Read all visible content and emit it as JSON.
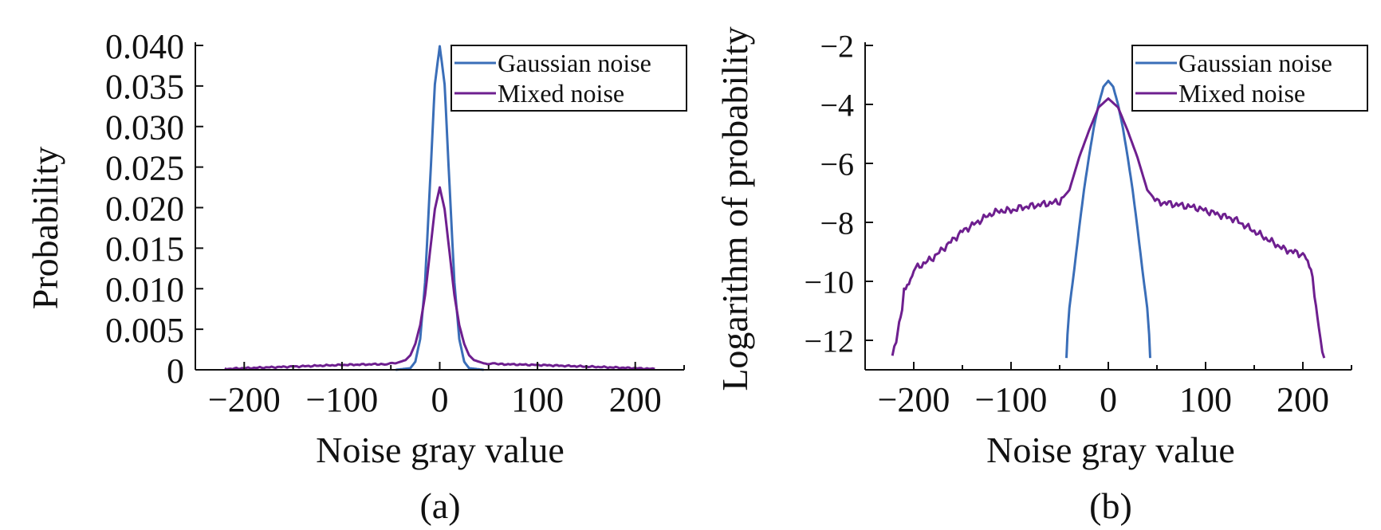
{
  "chart_data": [
    {
      "type": "line",
      "panel_label": "(a)",
      "xlabel": "Noise gray value",
      "ylabel": "Probability",
      "xlim": [
        -250,
        250
      ],
      "ylim": [
        0,
        0.04
      ],
      "xticks": [
        -200,
        -100,
        0,
        100,
        200
      ],
      "xtick_labels": [
        "−200",
        "−100",
        "0",
        "100",
        "200"
      ],
      "yticks": [
        0,
        0.005,
        0.01,
        0.015,
        0.02,
        0.025,
        0.03,
        0.035,
        0.04
      ],
      "ytick_labels": [
        "0",
        "0.005",
        "0.010",
        "0.015",
        "0.020",
        "0.025",
        "0.030",
        "0.035",
        "0.040"
      ],
      "grid": false,
      "legend_position": "top-right",
      "series": [
        {
          "name": "Gaussian noise",
          "color": "#3a6eb8",
          "x": [
            -45,
            -30,
            -25,
            -20,
            -15,
            -10,
            -5,
            0,
            5,
            10,
            15,
            20,
            25,
            30,
            45
          ],
          "y": [
            0,
            0.0002,
            0.001,
            0.0038,
            0.0108,
            0.0228,
            0.0352,
            0.0399,
            0.0352,
            0.0228,
            0.0108,
            0.0038,
            0.001,
            0.0002,
            0
          ]
        },
        {
          "name": "Mixed noise",
          "color": "#6e1f8f",
          "x": [
            -220,
            -200,
            -150,
            -100,
            -60,
            -45,
            -35,
            -30,
            -25,
            -20,
            -15,
            -10,
            -5,
            0,
            5,
            10,
            15,
            20,
            25,
            30,
            35,
            45,
            60,
            100,
            150,
            200,
            220
          ],
          "y": [
            0.0001,
            0.0002,
            0.0004,
            0.0006,
            0.0007,
            0.0008,
            0.0012,
            0.0018,
            0.0032,
            0.0055,
            0.0092,
            0.0145,
            0.0198,
            0.0225,
            0.0198,
            0.0145,
            0.0092,
            0.0055,
            0.0032,
            0.0018,
            0.0012,
            0.0008,
            0.0007,
            0.0006,
            0.0004,
            0.0002,
            0.0001
          ]
        }
      ]
    },
    {
      "type": "line",
      "panel_label": "(b)",
      "xlabel": "Noise gray value",
      "ylabel": "Logarithm of probability",
      "xlim": [
        -250,
        250
      ],
      "ylim": [
        -13,
        -2
      ],
      "xticks": [
        -200,
        -100,
        0,
        100,
        200
      ],
      "xtick_labels": [
        "−200",
        "−100",
        "0",
        "100",
        "200"
      ],
      "yticks": [
        -2,
        -4,
        -6,
        -8,
        -10,
        -12
      ],
      "ytick_labels": [
        "−2",
        "−4",
        "−6",
        "−8",
        "−10",
        "−12"
      ],
      "grid": false,
      "legend_position": "top-right",
      "series": [
        {
          "name": "Gaussian noise",
          "color": "#3a6eb8",
          "x": [
            -43,
            -42,
            -40,
            -35,
            -30,
            -25,
            -20,
            -15,
            -10,
            -5,
            0,
            5,
            10,
            15,
            20,
            25,
            30,
            35,
            40,
            42,
            43
          ],
          "y": [
            -12.6,
            -11.8,
            -10.9,
            -9.6,
            -8.2,
            -6.9,
            -5.8,
            -4.8,
            -4.0,
            -3.4,
            -3.2,
            -3.4,
            -4.0,
            -4.8,
            -5.8,
            -6.9,
            -8.2,
            -9.6,
            -10.9,
            -11.8,
            -12.6
          ]
        },
        {
          "name": "Mixed noise",
          "color": "#6e1f8f",
          "x": [
            -222,
            -218,
            -215,
            -212,
            -210,
            -205,
            -200,
            -190,
            -180,
            -170,
            -160,
            -150,
            -140,
            -130,
            -120,
            -110,
            -100,
            -90,
            -80,
            -70,
            -60,
            -50,
            -40,
            -30,
            -20,
            -10,
            0,
            10,
            20,
            30,
            40,
            50,
            60,
            70,
            80,
            90,
            100,
            110,
            120,
            130,
            140,
            150,
            160,
            170,
            180,
            190,
            200,
            205,
            210,
            212,
            215,
            218,
            222
          ],
          "y": [
            -12.6,
            -12.0,
            -11.4,
            -10.9,
            -10.3,
            -10.0,
            -9.6,
            -9.4,
            -9.2,
            -8.9,
            -8.6,
            -8.3,
            -8.1,
            -7.9,
            -7.7,
            -7.6,
            -7.6,
            -7.5,
            -7.45,
            -7.4,
            -7.35,
            -7.3,
            -6.9,
            -5.8,
            -4.9,
            -4.1,
            -3.8,
            -4.1,
            -4.9,
            -5.8,
            -6.9,
            -7.3,
            -7.35,
            -7.4,
            -7.45,
            -7.5,
            -7.6,
            -7.7,
            -7.8,
            -7.9,
            -8.1,
            -8.3,
            -8.5,
            -8.7,
            -8.9,
            -9.0,
            -9.1,
            -9.4,
            -9.8,
            -10.6,
            -11.2,
            -12.0,
            -12.6
          ]
        }
      ]
    }
  ]
}
